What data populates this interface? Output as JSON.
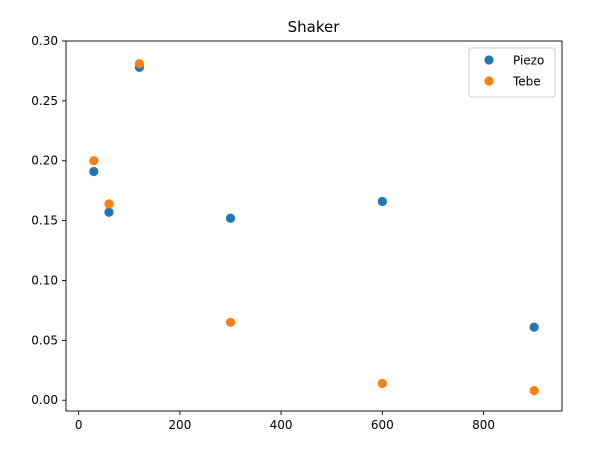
{
  "chart_data": {
    "type": "scatter",
    "title": "Shaker",
    "xlabel": "",
    "ylabel": "",
    "xlim": [
      -25,
      955
    ],
    "ylim": [
      -0.009,
      0.3
    ],
    "xticks": [
      0,
      200,
      400,
      600,
      800
    ],
    "xtick_labels": [
      "0",
      "200",
      "400",
      "600",
      "800"
    ],
    "yticks": [
      0.0,
      0.05,
      0.1,
      0.15,
      0.2,
      0.25,
      0.3
    ],
    "ytick_labels": [
      "0.00",
      "0.05",
      "0.10",
      "0.15",
      "0.20",
      "0.25",
      "0.30"
    ],
    "grid": false,
    "legend_position": "upper-right",
    "series": [
      {
        "name": "Piezo",
        "color": "#1f77b4",
        "x": [
          30,
          60,
          120,
          300,
          600,
          900
        ],
        "y": [
          0.191,
          0.157,
          0.278,
          0.152,
          0.166,
          0.061
        ]
      },
      {
        "name": "Tebe",
        "color": "#ff7f0e",
        "x": [
          30,
          60,
          120,
          300,
          600,
          900
        ],
        "y": [
          0.2,
          0.164,
          0.281,
          0.065,
          0.014,
          0.008
        ]
      }
    ]
  }
}
